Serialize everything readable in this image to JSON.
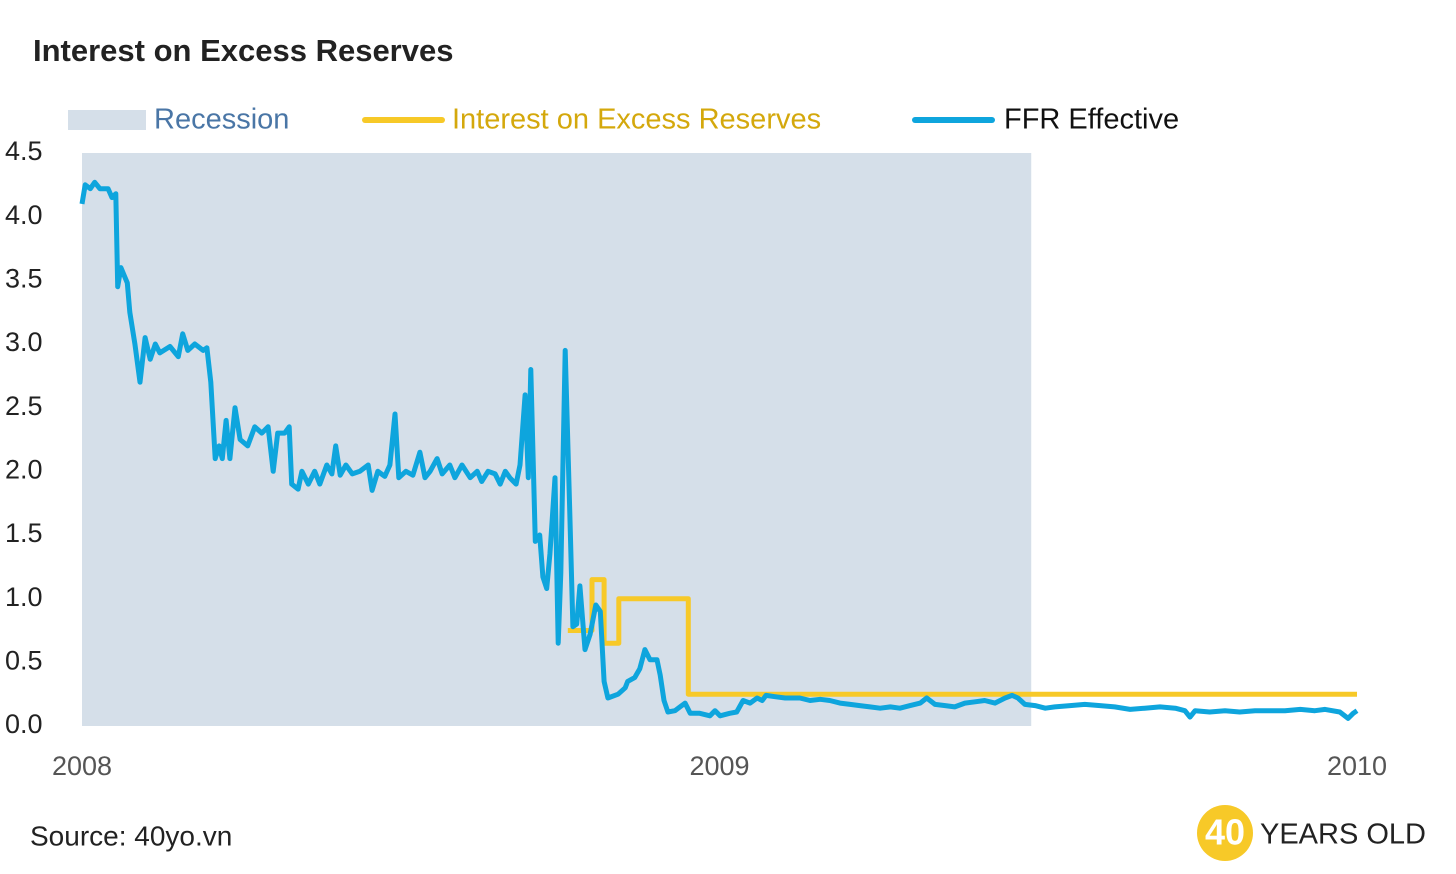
{
  "chart_data": {
    "type": "line",
    "title": "Interest on Excess Reserves",
    "source": "Source: 40yo.vn",
    "logo": {
      "mark": "40",
      "text": "YEARS OLD"
    },
    "xlim": [
      2008,
      2010
    ],
    "xticks": [
      2008,
      2009,
      2010
    ],
    "ylim": [
      0,
      4.5
    ],
    "yticks": [
      {
        "value": 0,
        "label": "0.0"
      },
      0.5,
      {
        "value": 1,
        "label": "1.0"
      },
      1.5,
      {
        "value": 2,
        "label": "2.0"
      },
      2.5,
      {
        "value": 3,
        "label": "3.0"
      },
      3.5,
      {
        "value": 4,
        "label": "4.0"
      },
      4.5
    ],
    "grid": false,
    "recession": {
      "name": "Recession",
      "start": 2008,
      "end": 2009.489,
      "color": "#d5dfe9"
    },
    "series": [
      {
        "name": "Interest on Excess Reserves",
        "color": "#f7c928",
        "step": true,
        "x": [
          2008.762,
          2008.8,
          2008.8,
          2008.819,
          2008.819,
          2008.842,
          2008.842,
          2008.951,
          2008.951,
          2010.0
        ],
        "values": [
          0.75,
          0.75,
          1.15,
          1.15,
          0.65,
          0.65,
          1.0,
          1.0,
          0.25,
          0.25
        ]
      },
      {
        "name": "FFR Effective",
        "color": "#0ea5dd",
        "x": [
          2008.0,
          2008.005,
          2008.013,
          2008.02,
          2008.028,
          2008.041,
          2008.047,
          2008.053,
          2008.056,
          2008.061,
          2008.071,
          2008.075,
          2008.083,
          2008.091,
          2008.099,
          2008.107,
          2008.115,
          2008.122,
          2008.138,
          2008.151,
          2008.158,
          2008.166,
          2008.177,
          2008.19,
          2008.196,
          2008.202,
          2008.209,
          2008.215,
          2008.22,
          2008.226,
          2008.232,
          2008.24,
          2008.248,
          2008.26,
          2008.271,
          2008.282,
          2008.292,
          2008.3,
          2008.307,
          2008.318,
          2008.325,
          2008.329,
          2008.339,
          2008.345,
          2008.355,
          2008.365,
          2008.373,
          2008.384,
          2008.392,
          2008.398,
          2008.405,
          2008.414,
          2008.424,
          2008.436,
          2008.449,
          2008.455,
          2008.464,
          2008.475,
          2008.483,
          2008.491,
          2008.497,
          2008.508,
          2008.519,
          2008.53,
          2008.538,
          2008.546,
          2008.557,
          2008.565,
          2008.577,
          2008.585,
          2008.596,
          2008.609,
          2008.62,
          2008.627,
          2008.637,
          2008.648,
          2008.656,
          2008.664,
          2008.671,
          2008.681,
          2008.687,
          2008.695,
          2008.7,
          2008.704,
          2008.711,
          2008.718,
          2008.723,
          2008.729,
          2008.734,
          2008.742,
          2008.747,
          2008.751,
          2008.758,
          2008.765,
          2008.77,
          2008.776,
          2008.781,
          2008.789,
          2008.797,
          2008.806,
          2008.813,
          2008.819,
          2008.825,
          2008.841,
          2008.852,
          2008.856,
          2008.867,
          2008.875,
          2008.883,
          2008.891,
          2008.902,
          2008.907,
          2008.913,
          2008.919,
          2008.93,
          2008.938,
          2008.946,
          2008.954,
          2008.969,
          2008.985,
          2008.993,
          2009.001,
          2009.016,
          2009.027,
          2009.037,
          2009.048,
          2009.059,
          2009.067,
          2009.073,
          2009.087,
          2009.103,
          2009.126,
          2009.142,
          2009.158,
          2009.173,
          2009.189,
          2009.205,
          2009.22,
          2009.236,
          2009.252,
          2009.268,
          2009.283,
          2009.299,
          2009.315,
          2009.325,
          2009.338,
          2009.354,
          2009.369,
          2009.385,
          2009.401,
          2009.416,
          2009.432,
          2009.448,
          2009.459,
          2009.468,
          2009.479,
          2009.495,
          2009.511,
          2009.526,
          2009.55,
          2009.573,
          2009.597,
          2009.62,
          2009.644,
          2009.667,
          2009.691,
          2009.715,
          2009.73,
          2009.738,
          2009.746,
          2009.769,
          2009.793,
          2009.816,
          2009.84,
          2009.864,
          2009.887,
          2009.911,
          2009.934,
          2009.95,
          2009.973,
          2009.986,
          2009.994,
          2010.0
        ],
        "values": [
          4.1,
          4.25,
          4.22,
          4.27,
          4.22,
          4.22,
          4.15,
          4.18,
          3.45,
          3.6,
          3.48,
          3.25,
          3.0,
          2.7,
          3.05,
          2.88,
          3.0,
          2.93,
          2.98,
          2.9,
          3.08,
          2.95,
          3.0,
          2.95,
          2.97,
          2.7,
          2.1,
          2.2,
          2.1,
          2.4,
          2.1,
          2.5,
          2.25,
          2.2,
          2.35,
          2.3,
          2.35,
          2.0,
          2.3,
          2.3,
          2.35,
          1.9,
          1.86,
          2.0,
          1.9,
          2.0,
          1.9,
          2.05,
          1.98,
          2.2,
          1.97,
          2.05,
          1.98,
          2.0,
          2.05,
          1.85,
          2.0,
          1.96,
          2.05,
          2.45,
          1.95,
          2.0,
          1.97,
          2.15,
          1.95,
          2.0,
          2.1,
          1.98,
          2.05,
          1.95,
          2.05,
          1.95,
          2.0,
          1.92,
          2.0,
          1.98,
          1.9,
          2.0,
          1.95,
          1.9,
          2.05,
          2.6,
          1.95,
          2.8,
          1.45,
          1.5,
          1.17,
          1.08,
          1.35,
          1.95,
          0.65,
          1.2,
          2.95,
          1.7,
          0.78,
          0.8,
          1.1,
          0.6,
          0.72,
          0.95,
          0.9,
          0.35,
          0.22,
          0.25,
          0.3,
          0.35,
          0.38,
          0.45,
          0.6,
          0.52,
          0.52,
          0.4,
          0.2,
          0.11,
          0.12,
          0.15,
          0.18,
          0.1,
          0.1,
          0.08,
          0.12,
          0.08,
          0.1,
          0.11,
          0.2,
          0.18,
          0.22,
          0.2,
          0.24,
          0.23,
          0.22,
          0.22,
          0.2,
          0.21,
          0.2,
          0.18,
          0.17,
          0.16,
          0.15,
          0.14,
          0.15,
          0.14,
          0.16,
          0.18,
          0.22,
          0.17,
          0.16,
          0.15,
          0.18,
          0.19,
          0.2,
          0.18,
          0.22,
          0.24,
          0.22,
          0.17,
          0.16,
          0.14,
          0.15,
          0.16,
          0.17,
          0.16,
          0.15,
          0.13,
          0.14,
          0.15,
          0.14,
          0.12,
          0.07,
          0.12,
          0.11,
          0.12,
          0.11,
          0.12,
          0.12,
          0.12,
          0.13,
          0.12,
          0.13,
          0.11,
          0.06,
          0.1,
          0.12
        ]
      }
    ]
  }
}
